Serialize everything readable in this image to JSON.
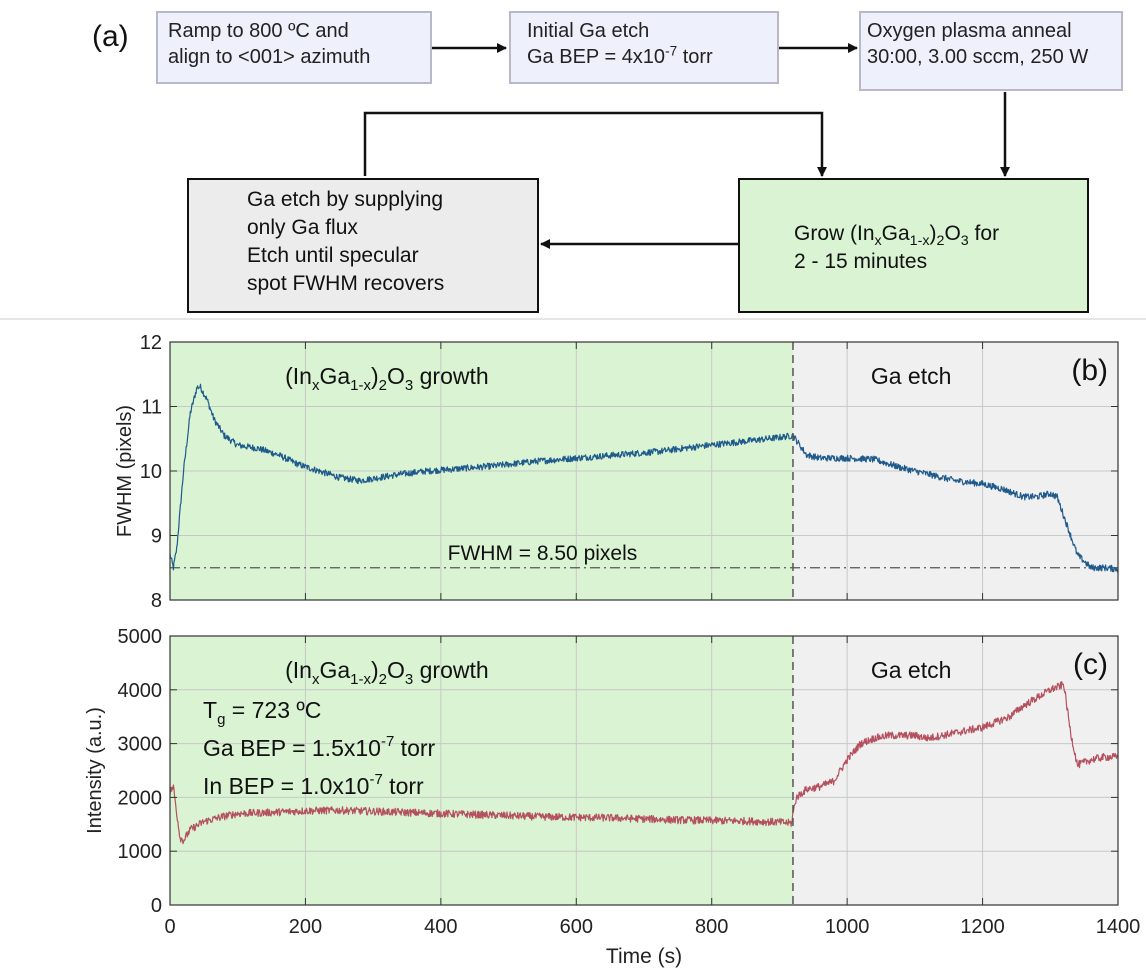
{
  "flow": {
    "label": "(a)",
    "box1": {
      "line1": "Ramp to 800 ºC and",
      "line2": "align to <001> azimuth"
    },
    "box2": {
      "line1": "Initial Ga etch",
      "line2a": "Ga BEP = 4x10",
      "line2sup": "-7",
      "line2b": " torr"
    },
    "box3": {
      "line1": "Oxygen plasma anneal",
      "line2": "30:00, 3.00 sccm, 250 W"
    },
    "box4": {
      "a": "Grow (In",
      "b": "x",
      "c": "Ga",
      "d": "1-x",
      "e": ")",
      "f": "2",
      "g": "O",
      "h": "3",
      "i": " for",
      "line2": "2 - 15 minutes"
    },
    "box5": {
      "lines": [
        "Ga etch by supplying",
        "only Ga flux",
        "Etch until specular",
        "spot FWHM recovers"
      ]
    }
  },
  "chart_data": [
    {
      "type": "line",
      "panel": "(b)",
      "xlabel": "",
      "ylabel": "FWHM (pixels)",
      "xlim": [
        0,
        1400
      ],
      "ylim": [
        8,
        12
      ],
      "xticks": [
        0,
        200,
        400,
        600,
        800,
        1000,
        1200,
        1400
      ],
      "yticks": [
        8,
        9,
        10,
        11,
        12
      ],
      "grid": true,
      "regions": [
        {
          "from": 0,
          "to": 920,
          "color": "#d9f3d3",
          "label_parts": [
            "(In",
            "x",
            "Ga",
            "1-x",
            ")",
            "2",
            "O",
            "3",
            " growth"
          ]
        },
        {
          "from": 920,
          "to": 1400,
          "color": "#f0f0f0",
          "label": "Ga etch"
        }
      ],
      "divider_x": 920,
      "reference_line": {
        "y": 8.5,
        "label": "FWHM = 8.50 pixels"
      },
      "series": [
        {
          "color": "#1f5a8c",
          "noise": 0.05,
          "x": [
            0,
            5,
            10,
            20,
            30,
            40,
            45,
            55,
            65,
            80,
            100,
            130,
            160,
            190,
            220,
            250,
            280,
            310,
            340,
            380,
            420,
            480,
            540,
            600,
            660,
            720,
            780,
            840,
            900,
            920,
            940,
            960,
            1000,
            1040,
            1080,
            1120,
            1160,
            1200,
            1230,
            1260,
            1280,
            1300,
            1310,
            1320,
            1330,
            1340,
            1360,
            1380,
            1400
          ],
          "y": [
            8.7,
            8.5,
            8.8,
            10.0,
            10.9,
            11.3,
            11.3,
            11.1,
            10.8,
            10.55,
            10.4,
            10.35,
            10.25,
            10.1,
            10.0,
            9.9,
            9.85,
            9.9,
            9.95,
            10.0,
            10.03,
            10.08,
            10.15,
            10.2,
            10.25,
            10.3,
            10.38,
            10.45,
            10.52,
            10.55,
            10.25,
            10.2,
            10.2,
            10.18,
            10.05,
            9.95,
            9.85,
            9.8,
            9.72,
            9.6,
            9.6,
            9.65,
            9.6,
            9.3,
            9.0,
            8.7,
            8.5,
            8.5,
            8.48
          ]
        }
      ]
    },
    {
      "type": "line",
      "panel": "(c)",
      "xlabel": "Time (s)",
      "ylabel": "Intensity (a.u.)",
      "xlim": [
        0,
        1400
      ],
      "ylim": [
        0,
        5000
      ],
      "xticks": [
        0,
        200,
        400,
        600,
        800,
        1000,
        1200,
        1400
      ],
      "yticks": [
        0,
        1000,
        2000,
        3000,
        4000,
        5000
      ],
      "grid": true,
      "regions": [
        {
          "from": 0,
          "to": 920,
          "color": "#d9f3d3",
          "label_parts": [
            "(In",
            "x",
            "Ga",
            "1-x",
            ")",
            "2",
            "O",
            "3",
            " growth"
          ]
        },
        {
          "from": 920,
          "to": 1400,
          "color": "#f0f0f0",
          "label": "Ga etch"
        }
      ],
      "divider_x": 920,
      "annotations": [
        {
          "parts": [
            "T",
            "g",
            " = 723 ºC"
          ],
          "kind": "sub"
        },
        {
          "parts": [
            "Ga BEP = 1.5x10",
            "-7",
            " torr"
          ],
          "kind": "sup"
        },
        {
          "parts": [
            "In BEP = 1.0x10",
            "-7",
            " torr"
          ],
          "kind": "sup"
        }
      ],
      "series": [
        {
          "color": "#b5505f",
          "noise": 70,
          "x": [
            0,
            5,
            10,
            15,
            20,
            30,
            50,
            80,
            100,
            150,
            200,
            250,
            300,
            350,
            400,
            450,
            500,
            550,
            600,
            650,
            700,
            750,
            800,
            850,
            900,
            918,
            920,
            925,
            940,
            960,
            980,
            1000,
            1020,
            1040,
            1060,
            1080,
            1100,
            1120,
            1140,
            1160,
            1180,
            1200,
            1220,
            1240,
            1260,
            1280,
            1300,
            1310,
            1320,
            1330,
            1340,
            1360,
            1380,
            1400
          ],
          "y": [
            2100,
            2200,
            1700,
            1250,
            1200,
            1400,
            1550,
            1650,
            1700,
            1720,
            1750,
            1760,
            1740,
            1720,
            1700,
            1680,
            1660,
            1640,
            1630,
            1620,
            1600,
            1580,
            1570,
            1560,
            1540,
            1520,
            1700,
            2000,
            2150,
            2200,
            2300,
            2700,
            3000,
            3100,
            3150,
            3150,
            3150,
            3100,
            3150,
            3200,
            3250,
            3300,
            3400,
            3500,
            3700,
            3850,
            4000,
            4050,
            4100,
            3200,
            2600,
            2700,
            2750,
            2750
          ]
        }
      ]
    }
  ]
}
